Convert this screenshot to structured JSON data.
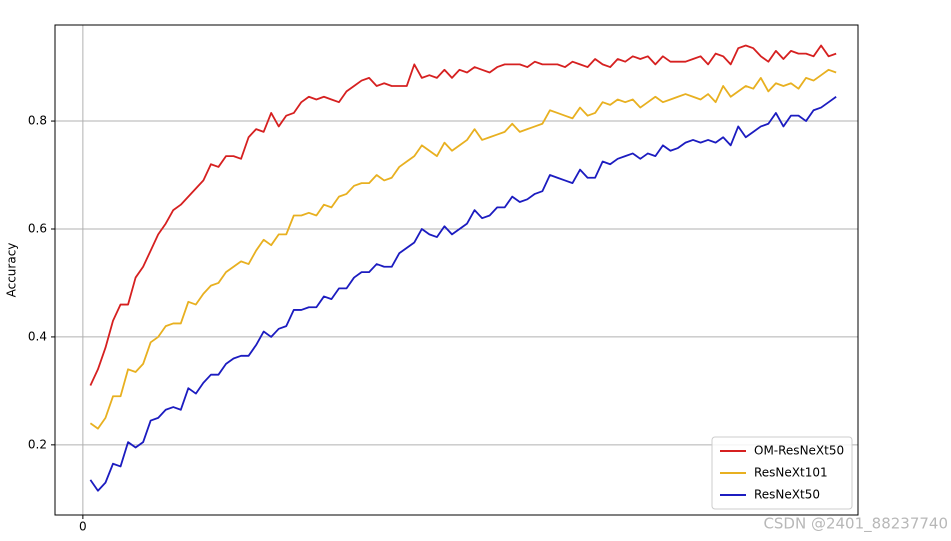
{
  "chart_data": {
    "type": "line",
    "y_label": "Accuracy",
    "x": [
      1,
      2,
      3,
      4,
      5,
      6,
      7,
      8,
      9,
      10,
      11,
      12,
      13,
      14,
      15,
      16,
      17,
      18,
      19,
      20,
      21,
      22,
      23,
      24,
      25,
      26,
      27,
      28,
      29,
      30,
      31,
      32,
      33,
      34,
      35,
      36,
      37,
      38,
      39,
      40,
      41,
      42,
      43,
      44,
      45,
      46,
      47,
      48,
      49,
      50,
      51,
      52,
      53,
      54,
      55,
      56,
      57,
      58,
      59,
      60,
      61,
      62,
      63,
      64,
      65,
      66,
      67,
      68,
      69,
      70,
      71,
      72,
      73,
      74,
      75,
      76,
      77,
      78,
      79,
      80,
      81,
      82,
      83,
      84,
      85,
      86,
      87,
      88,
      89,
      90,
      91,
      92,
      93,
      94,
      95,
      96,
      97,
      98,
      99,
      100
    ],
    "series": [
      {
        "name": "OM-ResNeXt50",
        "color": "#d62020",
        "values": [
          0.31,
          0.34,
          0.38,
          0.43,
          0.46,
          0.46,
          0.51,
          0.53,
          0.56,
          0.59,
          0.61,
          0.635,
          0.645,
          0.66,
          0.675,
          0.69,
          0.72,
          0.715,
          0.735,
          0.735,
          0.73,
          0.77,
          0.785,
          0.78,
          0.815,
          0.79,
          0.81,
          0.815,
          0.835,
          0.845,
          0.84,
          0.845,
          0.84,
          0.835,
          0.855,
          0.865,
          0.875,
          0.88,
          0.865,
          0.87,
          0.865,
          0.865,
          0.865,
          0.905,
          0.88,
          0.885,
          0.88,
          0.895,
          0.88,
          0.895,
          0.89,
          0.9,
          0.895,
          0.89,
          0.9,
          0.905,
          0.905,
          0.905,
          0.9,
          0.91,
          0.905,
          0.905,
          0.905,
          0.9,
          0.91,
          0.905,
          0.9,
          0.915,
          0.905,
          0.9,
          0.915,
          0.91,
          0.92,
          0.915,
          0.92,
          0.905,
          0.92,
          0.91,
          0.91,
          0.91,
          0.915,
          0.92,
          0.905,
          0.925,
          0.92,
          0.905,
          0.935,
          0.94,
          0.935,
          0.92,
          0.91,
          0.93,
          0.915,
          0.93,
          0.925,
          0.925,
          0.92,
          0.94,
          0.92,
          0.925
        ]
      },
      {
        "name": "ResNeXt101",
        "color": "#e8b020",
        "values": [
          0.24,
          0.23,
          0.25,
          0.29,
          0.29,
          0.34,
          0.335,
          0.35,
          0.39,
          0.4,
          0.42,
          0.425,
          0.425,
          0.465,
          0.46,
          0.48,
          0.495,
          0.5,
          0.52,
          0.53,
          0.54,
          0.535,
          0.56,
          0.58,
          0.57,
          0.59,
          0.59,
          0.625,
          0.625,
          0.63,
          0.625,
          0.645,
          0.64,
          0.66,
          0.665,
          0.68,
          0.685,
          0.685,
          0.7,
          0.69,
          0.695,
          0.715,
          0.725,
          0.735,
          0.755,
          0.745,
          0.735,
          0.76,
          0.745,
          0.755,
          0.765,
          0.785,
          0.765,
          0.77,
          0.775,
          0.78,
          0.795,
          0.78,
          0.785,
          0.79,
          0.795,
          0.82,
          0.815,
          0.81,
          0.805,
          0.825,
          0.81,
          0.815,
          0.835,
          0.83,
          0.84,
          0.835,
          0.84,
          0.825,
          0.835,
          0.845,
          0.835,
          0.84,
          0.845,
          0.85,
          0.845,
          0.84,
          0.85,
          0.835,
          0.865,
          0.845,
          0.855,
          0.865,
          0.86,
          0.88,
          0.855,
          0.87,
          0.865,
          0.87,
          0.86,
          0.88,
          0.875,
          0.885,
          0.895,
          0.89
        ]
      },
      {
        "name": "ResNeXt50",
        "color": "#1c1cc0",
        "values": [
          0.135,
          0.115,
          0.13,
          0.165,
          0.16,
          0.205,
          0.195,
          0.205,
          0.245,
          0.25,
          0.265,
          0.27,
          0.265,
          0.305,
          0.295,
          0.315,
          0.33,
          0.33,
          0.35,
          0.36,
          0.365,
          0.365,
          0.385,
          0.41,
          0.4,
          0.415,
          0.42,
          0.45,
          0.45,
          0.455,
          0.455,
          0.475,
          0.47,
          0.49,
          0.49,
          0.51,
          0.52,
          0.52,
          0.535,
          0.53,
          0.53,
          0.555,
          0.565,
          0.575,
          0.6,
          0.59,
          0.585,
          0.605,
          0.59,
          0.6,
          0.61,
          0.635,
          0.62,
          0.625,
          0.64,
          0.64,
          0.66,
          0.65,
          0.655,
          0.665,
          0.67,
          0.7,
          0.695,
          0.69,
          0.685,
          0.71,
          0.695,
          0.695,
          0.725,
          0.72,
          0.73,
          0.735,
          0.74,
          0.73,
          0.74,
          0.735,
          0.755,
          0.745,
          0.75,
          0.76,
          0.765,
          0.76,
          0.765,
          0.76,
          0.77,
          0.755,
          0.79,
          0.77,
          0.78,
          0.79,
          0.795,
          0.815,
          0.79,
          0.81,
          0.81,
          0.8,
          0.82,
          0.825,
          0.835,
          0.845
        ]
      }
    ],
    "xlim": [
      -3.7,
      102.9
    ],
    "xticks": [
      0
    ],
    "ylim": [
      0.07,
      0.978
    ],
    "yticks": [
      0.2,
      0.4,
      0.6,
      0.8
    ],
    "grid": true,
    "legend": "lower right",
    "watermark": "CSDN @2401_88237740"
  }
}
